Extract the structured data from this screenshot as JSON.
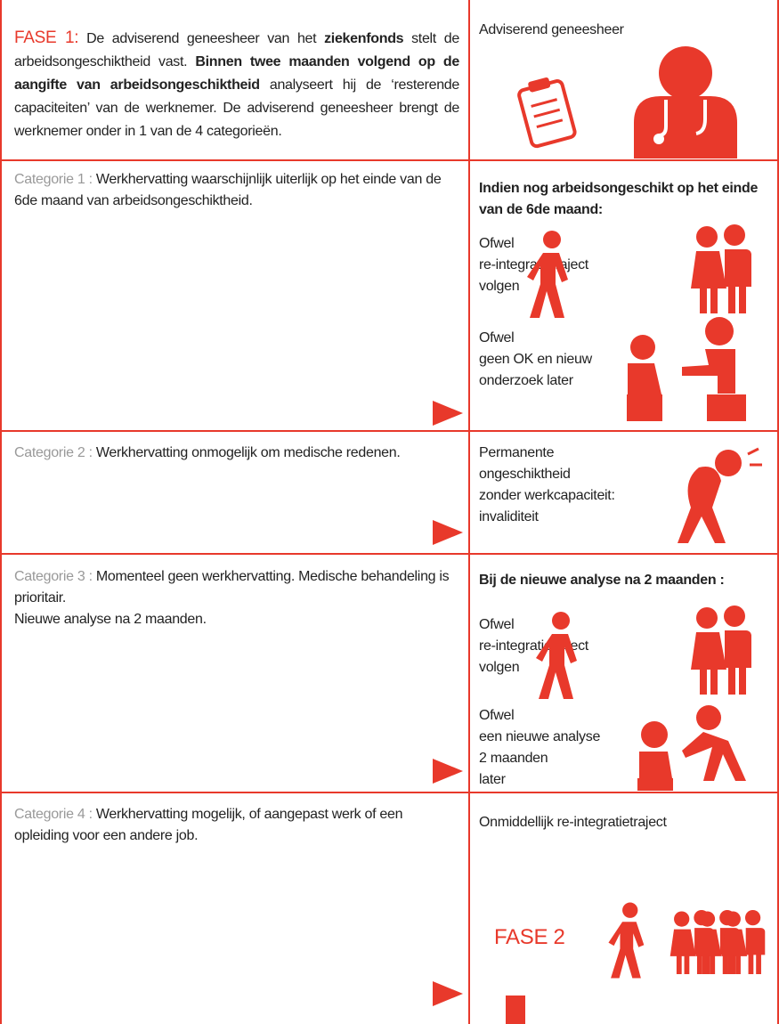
{
  "rows": [
    {
      "left": {
        "segments": [
          "FASE 1:",
          " De adviserend geneesheer van het ",
          "ziekenfonds",
          " stelt de arbeidsongeschiktheid vast. ",
          "Binnen twee maanden volgend op de aangifte van arbeidsongeschiktheid",
          " analyseert hij de ‘resterende capaciteiten’ van de werknemer. De adviserend geneesheer brengt de werknemer onder in 1 van de 4 categorieën."
        ]
      },
      "right": {
        "heading": "Adviserend geneesheer"
      }
    },
    {
      "left": {
        "label": "Categorie 1 :",
        "text": "Werkhervatting waarschijnlijk uiterlijk op het einde van de 6de maand van arbeidsongeschiktheid."
      },
      "right": {
        "heading": "Indien nog arbeidsongeschikt op het einde van de 6de maand:",
        "options": [
          [
            "Ofwel",
            "re-integratietraject",
            "volgen"
          ],
          [
            "Ofwel",
            "geen OK en nieuw",
            "onderzoek later"
          ]
        ]
      }
    },
    {
      "left": {
        "label": "Categorie 2 :",
        "text": "Werkhervatting onmogelijk om medische redenen."
      },
      "right": {
        "lines": [
          "Permanente",
          "ongeschiktheid",
          "zonder werkcapaciteit:",
          "invaliditeit"
        ]
      }
    },
    {
      "left": {
        "label": "Categorie 3 :",
        "text": "Momenteel geen werkhervatting. Medische behandeling is prioritair.",
        "text_2": "Nieuwe analyse na 2 maanden."
      },
      "right": {
        "heading": "Bij de nieuwe analyse na 2 maanden :",
        "options": [
          [
            "Ofwel",
            "re-integratietraject",
            "volgen"
          ],
          [
            "Ofwel",
            "een nieuwe analyse",
            "2 maanden",
            "later"
          ]
        ]
      }
    },
    {
      "left": {
        "label": "Categorie 4 :",
        "text": "Werkhervatting mogelijk, of aangepast werk of een opleiding voor een andere job."
      },
      "right": {
        "heading": "Onmiddellijk re-integratietraject",
        "badge": "FASE 2"
      }
    }
  ]
}
